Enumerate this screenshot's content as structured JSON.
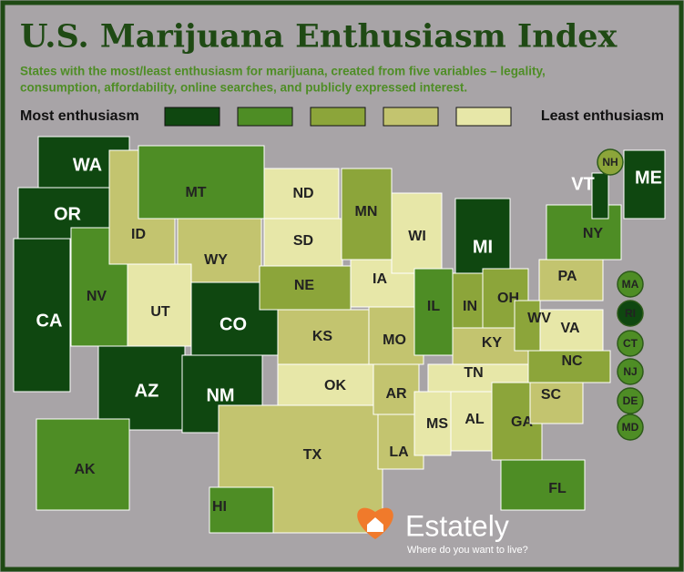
{
  "header": {
    "title": "U.S. Marijuana Enthusiasm Index",
    "subtitle": [
      "States with the most/least enthusiasm for marijuana, created from five variables – legality,",
      "consumption, affordability, online searches, and publicly expressed interest."
    ]
  },
  "legend": {
    "most": "Most enthusiasm",
    "least": "Least enthusiasm",
    "colors": [
      "#0f4710",
      "#4e8d25",
      "#8ca53a",
      "#c3c46f",
      "#e7e7a8"
    ]
  },
  "states": [
    {
      "label": "WA",
      "color": "#0f4710"
    },
    {
      "label": "OR",
      "color": "#0f4710"
    },
    {
      "label": "CA",
      "color": "#0f4710"
    },
    {
      "label": "NV",
      "color": "#4e8d25"
    },
    {
      "label": "AZ",
      "color": "#0f4710"
    },
    {
      "label": "ID",
      "color": "#c3c46f"
    },
    {
      "label": "MT",
      "color": "#4e8d25"
    },
    {
      "label": "WY",
      "color": "#c3c46f"
    },
    {
      "label": "UT",
      "color": "#e7e7a8"
    },
    {
      "label": "CO",
      "color": "#0f4710"
    },
    {
      "label": "NM",
      "color": "#0f4710"
    },
    {
      "label": "ND",
      "color": "#e7e7a8"
    },
    {
      "label": "SD",
      "color": "#e7e7a8"
    },
    {
      "label": "NE",
      "color": "#8ca53a"
    },
    {
      "label": "KS",
      "color": "#c3c46f"
    },
    {
      "label": "OK",
      "color": "#e7e7a8"
    },
    {
      "label": "TX",
      "color": "#c3c46f"
    },
    {
      "label": "MN",
      "color": "#8ca53a"
    },
    {
      "label": "IA",
      "color": "#e7e7a8"
    },
    {
      "label": "MO",
      "color": "#c3c46f"
    },
    {
      "label": "AR",
      "color": "#c3c46f"
    },
    {
      "label": "LA",
      "color": "#c3c46f"
    },
    {
      "label": "WI",
      "color": "#e7e7a8"
    },
    {
      "label": "IL",
      "color": "#4e8d25"
    },
    {
      "label": "MI",
      "color": "#0f4710"
    },
    {
      "label": "IN",
      "color": "#8ca53a"
    },
    {
      "label": "OH",
      "color": "#8ca53a"
    },
    {
      "label": "KY",
      "color": "#c3c46f"
    },
    {
      "label": "TN",
      "color": "#e7e7a8"
    },
    {
      "label": "MS",
      "color": "#e7e7a8"
    },
    {
      "label": "AL",
      "color": "#e7e7a8"
    },
    {
      "label": "GA",
      "color": "#8ca53a"
    },
    {
      "label": "FL",
      "color": "#4e8d25"
    },
    {
      "label": "SC",
      "color": "#c3c46f"
    },
    {
      "label": "NC",
      "color": "#8ca53a"
    },
    {
      "label": "VA",
      "color": "#e7e7a8"
    },
    {
      "label": "WV",
      "color": "#8ca53a"
    },
    {
      "label": "PA",
      "color": "#c3c46f"
    },
    {
      "label": "NY",
      "color": "#4e8d25"
    },
    {
      "label": "VT",
      "color": "#0f4710"
    },
    {
      "label": "ME",
      "color": "#0f4710"
    },
    {
      "label": "AK",
      "color": "#4e8d25"
    },
    {
      "label": "HI",
      "color": "#4e8d25"
    },
    {
      "label": "NH",
      "color": "#8ca53a"
    },
    {
      "label": "MA",
      "color": "#4e8d25"
    },
    {
      "label": "RI",
      "color": "#0f4710"
    },
    {
      "label": "CT",
      "color": "#4e8d25"
    },
    {
      "label": "NJ",
      "color": "#4e8d25"
    },
    {
      "label": "DE",
      "color": "#4e8d25"
    },
    {
      "label": "MD",
      "color": "#4e8d25"
    }
  ],
  "brand": {
    "name": "Estately",
    "tagline": "Where do you want to live?"
  }
}
